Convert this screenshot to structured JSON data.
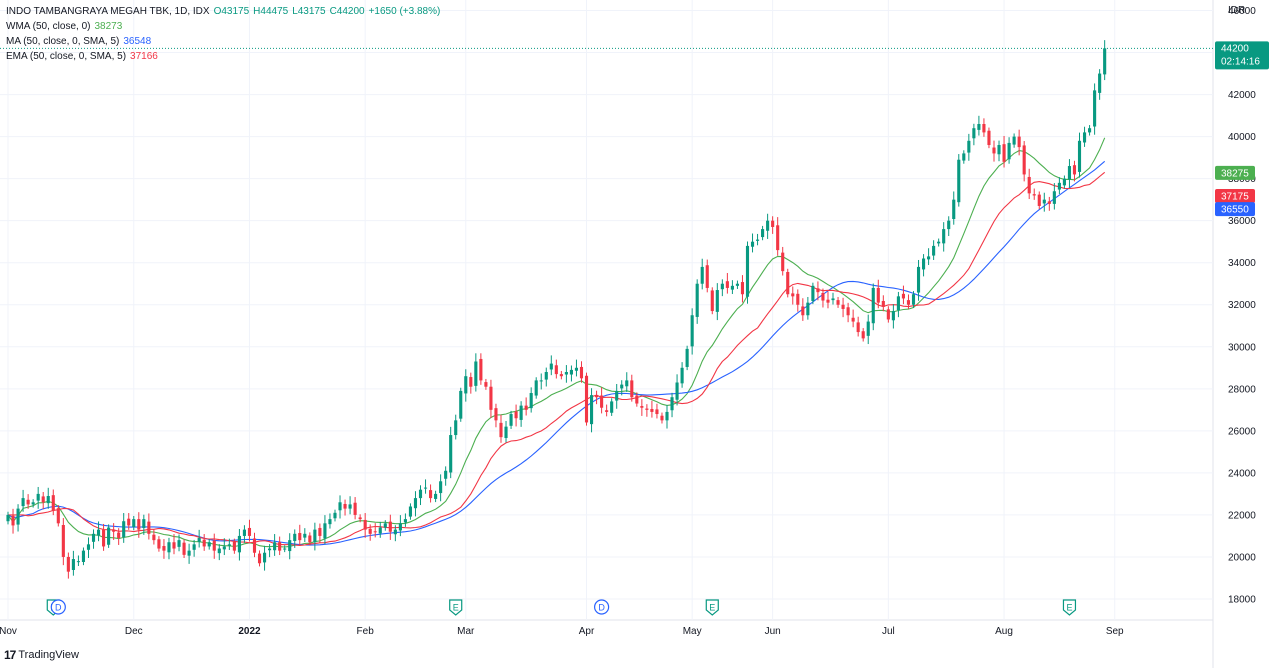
{
  "header": {
    "symbol": "INDO TAMBANGRAYA MEGAH TBK, 1D, IDX",
    "open": "O43175",
    "high": "H44475",
    "low": "L43175",
    "close": "C44200",
    "change": "+1650 (+3.88%)"
  },
  "indicators": [
    {
      "label": "WMA (50, close, 0)",
      "value": "38273",
      "color": "#4caf50"
    },
    {
      "label": "MA (50, close, 0, SMA, 5)",
      "value": "36548",
      "color": "#2962ff"
    },
    {
      "label": "EMA (50, close, 0, SMA, 5)",
      "value": "37166",
      "color": "#f23645"
    }
  ],
  "price_axis": {
    "currency": "IDR",
    "last_price": "44200",
    "countdown": "02:14:16",
    "badges": [
      {
        "value": "38275",
        "color": "#4caf50"
      },
      {
        "value": "37175",
        "color": "#f23645"
      },
      {
        "value": "36550",
        "color": "#2962ff"
      }
    ]
  },
  "events": [
    {
      "letter": "E",
      "date_index": 9,
      "type": "earnings"
    },
    {
      "letter": "D",
      "date_index": 10,
      "type": "dividend"
    },
    {
      "letter": "E",
      "date_index": 89,
      "type": "earnings"
    },
    {
      "letter": "D",
      "date_index": 118,
      "type": "dividend"
    },
    {
      "letter": "E",
      "date_index": 140,
      "type": "earnings"
    },
    {
      "letter": "E",
      "date_index": 211,
      "type": "earnings"
    }
  ],
  "footer": {
    "logo": "17",
    "brand": "TradingView"
  },
  "chart_data": {
    "type": "candlestick",
    "title": "",
    "ylim": [
      17000,
      46500
    ],
    "yticks": [
      18000,
      20000,
      22000,
      24000,
      26000,
      28000,
      30000,
      32000,
      34000,
      36000,
      38000,
      40000,
      42000,
      44000,
      46000
    ],
    "xlabels": [
      {
        "label": "Nov",
        "index": 0
      },
      {
        "label": "Dec",
        "index": 25
      },
      {
        "label": "2022",
        "index": 48
      },
      {
        "label": "Feb",
        "index": 71
      },
      {
        "label": "Mar",
        "index": 91
      },
      {
        "label": "Apr",
        "index": 115
      },
      {
        "label": "May",
        "index": 136
      },
      {
        "label": "Jun",
        "index": 152
      },
      {
        "label": "Jul",
        "index": 175
      },
      {
        "label": "Aug",
        "index": 198
      },
      {
        "label": "Sep",
        "index": 220
      }
    ],
    "total_slots": 230,
    "closes": [
      22000,
      21500,
      22300,
      22800,
      22500,
      22600,
      23000,
      22600,
      22900,
      22200,
      21600,
      20000,
      19300,
      19900,
      19800,
      20300,
      20600,
      21100,
      21300,
      20500,
      21400,
      21200,
      20900,
      21700,
      21500,
      21800,
      21300,
      21800,
      21100,
      20800,
      20400,
      20300,
      20700,
      20400,
      20800,
      20100,
      20300,
      20600,
      20900,
      20500,
      20700,
      20300,
      20400,
      20500,
      20600,
      20300,
      21000,
      21300,
      21000,
      20200,
      19700,
      20200,
      20400,
      20700,
      20300,
      20400,
      20800,
      21100,
      20800,
      21100,
      20700,
      21300,
      21000,
      21600,
      21800,
      22100,
      22600,
      22300,
      22500,
      22000,
      21800,
      21300,
      21100,
      21200,
      21400,
      21600,
      21200,
      21300,
      21600,
      21800,
      22400,
      22800,
      23200,
      23300,
      22800,
      23000,
      23600,
      24100,
      25800,
      26500,
      27900,
      28600,
      28100,
      29300,
      28400,
      28100,
      27000,
      26500,
      25700,
      26200,
      26800,
      26600,
      27200,
      27000,
      27800,
      28400,
      28400,
      28800,
      29200,
      28700,
      28600,
      28800,
      28900,
      29000,
      28500,
      26400,
      27700,
      27600,
      27100,
      26900,
      27400,
      27900,
      28200,
      28400,
      27600,
      27300,
      27100,
      27000,
      26900,
      26800,
      26500,
      26900,
      27600,
      28300,
      29000,
      29900,
      31500,
      33000,
      33800,
      32800,
      31700,
      32700,
      33000,
      32800,
      32900,
      33000,
      32500,
      34800,
      35000,
      35100,
      35600,
      36000,
      35700,
      34600,
      33600,
      32500,
      32400,
      32000,
      31500,
      32100,
      32900,
      32600,
      32200,
      32100,
      32300,
      32000,
      31800,
      31500,
      31200,
      30700,
      30400,
      31200,
      32800,
      32100,
      31900,
      31300,
      31700,
      32400,
      32300,
      32000,
      32500,
      33800,
      34200,
      34300,
      34800,
      35000,
      35600,
      36000,
      37000,
      38900,
      39200,
      39800,
      40400,
      40600,
      40200,
      39600,
      39200,
      39600,
      38800,
      39700,
      40000,
      39500,
      38200,
      37300,
      37200,
      36700,
      37000,
      36800,
      37400,
      37800,
      38000,
      38600,
      38200,
      39800,
      40200,
      40400,
      42200,
      43000,
      44200
    ],
    "series": [
      {
        "name": "WMA (50, close, 0)",
        "color": "#4caf50",
        "last": 38275
      },
      {
        "name": "MA (50, close, 0, SMA, 5)",
        "color": "#2962ff",
        "last": 36550
      },
      {
        "name": "EMA (50, close, 0, SMA, 5)",
        "color": "#f23645",
        "last": 37175
      }
    ]
  }
}
